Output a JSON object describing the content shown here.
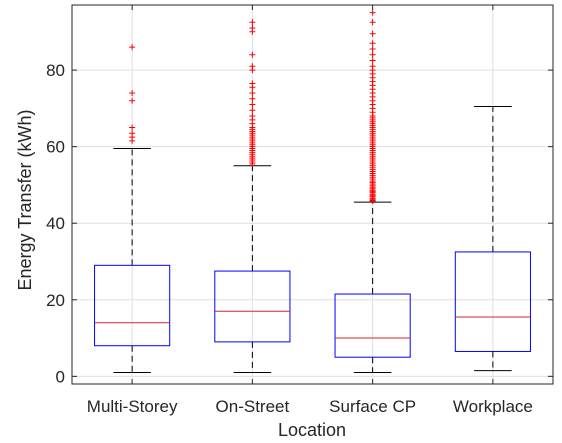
{
  "chart_data": {
    "type": "box",
    "title": "",
    "xlabel": "Location",
    "ylabel": "Energy Transfer (kWh)",
    "ylim": [
      -2,
      97
    ],
    "yticks": [
      0,
      20,
      40,
      60,
      80
    ],
    "grid": true,
    "categories": [
      "Multi-Storey",
      "On-Street",
      "Surface CP",
      "Workplace"
    ],
    "boxes": [
      {
        "category": "Multi-Storey",
        "whisker_low": 1,
        "q1": 8,
        "median": 14,
        "q3": 29,
        "whisker_high": 59.5,
        "outliers": [
          61.5,
          62.5,
          63.5,
          65,
          72,
          74,
          86
        ]
      },
      {
        "category": "On-Street",
        "whisker_low": 1,
        "q1": 9,
        "median": 17,
        "q3": 27.5,
        "whisker_high": 55,
        "outliers": [
          55.5,
          56,
          56.5,
          57,
          57.5,
          58,
          58.5,
          59,
          59.5,
          60,
          60.5,
          61,
          61.5,
          62,
          62.5,
          63,
          63.5,
          64,
          64.5,
          65,
          66,
          67,
          68,
          69.5,
          71,
          72.5,
          74,
          75.5,
          76.5,
          80,
          81,
          84,
          90,
          91,
          92.5
        ]
      },
      {
        "category": "Surface CP",
        "whisker_low": 1,
        "q1": 5,
        "median": 10,
        "q3": 21.5,
        "whisker_high": 45.5,
        "outliers": [
          45.8,
          46,
          46.3,
          46.6,
          47,
          47.3,
          47.6,
          48,
          48.3,
          48.6,
          49,
          49.4,
          49.8,
          50.2,
          50.6,
          51,
          51.5,
          52,
          52.5,
          53,
          53.5,
          54,
          54.5,
          55,
          55.5,
          56,
          56.5,
          57,
          57.5,
          58,
          58.5,
          59,
          59.5,
          60,
          60.5,
          61,
          61.5,
          62,
          62.5,
          63,
          63.5,
          64,
          64.5,
          65,
          65.5,
          66,
          66.5,
          67,
          67.5,
          68,
          69,
          70,
          71,
          72,
          73,
          74,
          75,
          76,
          77,
          78,
          79,
          80,
          81,
          82.5,
          84,
          85.5,
          87,
          89.5,
          92.5,
          95
        ]
      },
      {
        "category": "Workplace",
        "whisker_low": 1.5,
        "q1": 6.5,
        "median": 15.5,
        "q3": 32.5,
        "whisker_high": 70.5,
        "outliers": []
      }
    ],
    "colors": {
      "box": "#0000ff",
      "median": "#d62728",
      "whisker": "#000000",
      "outlier": "#ff0000",
      "grid": "#dfdfdf",
      "axis": "#262626"
    }
  }
}
